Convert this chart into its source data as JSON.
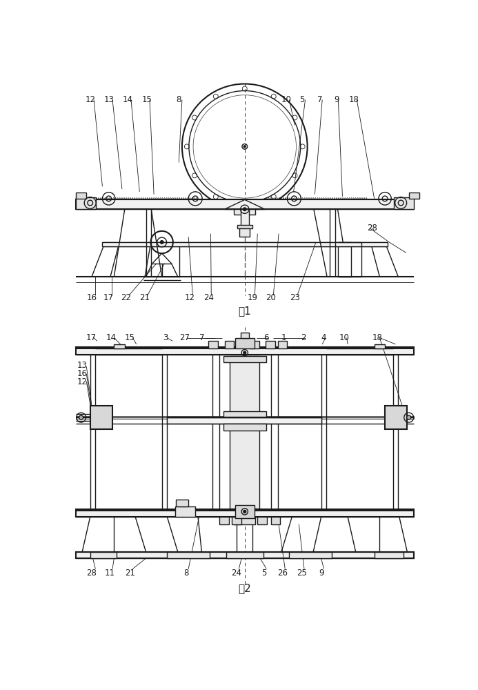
{
  "bg_color": "#ffffff",
  "line_color": "#1a1a1a",
  "fig1_caption": "图1",
  "fig2_caption": "图2",
  "lw_main": 1.0,
  "lw_thick": 1.5,
  "lw_thin": 0.6,
  "lw_label": 0.6,
  "fs_label": 8.5
}
